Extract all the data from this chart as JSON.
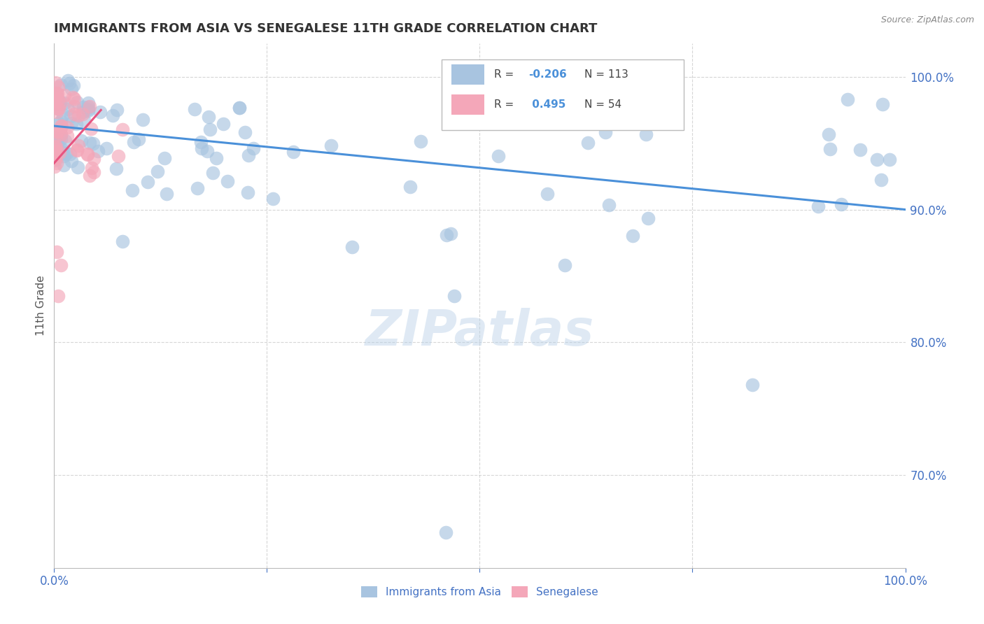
{
  "title": "IMMIGRANTS FROM ASIA VS SENEGALESE 11TH GRADE CORRELATION CHART",
  "source": "Source: ZipAtlas.com",
  "ylabel": "11th Grade",
  "y_ticks": [
    0.7,
    0.8,
    0.9,
    1.0
  ],
  "y_tick_labels": [
    "70.0%",
    "80.0%",
    "90.0%",
    "100.0%"
  ],
  "legend_bottom": [
    "Immigrants from Asia",
    "Senegalese"
  ],
  "blue_color": "#a8c4e0",
  "pink_color": "#f4a7b9",
  "blue_line_color": "#4a90d9",
  "pink_line_color": "#e75480",
  "title_color": "#333333",
  "tick_color": "#4472c4",
  "grid_color": "#cccccc",
  "watermark": "ZIPatlas",
  "blue_r": "-0.206",
  "blue_n": "113",
  "pink_r": "0.495",
  "pink_n": "54",
  "ylim_min": 0.63,
  "ylim_max": 1.025,
  "xlim_min": 0.0,
  "xlim_max": 1.0,
  "blue_trend_x0": 0.0,
  "blue_trend_y0": 0.963,
  "blue_trend_x1": 1.0,
  "blue_trend_y1": 0.9,
  "pink_trend_x0": 0.0,
  "pink_trend_y0": 0.935,
  "pink_trend_x1": 0.055,
  "pink_trend_y1": 0.975
}
